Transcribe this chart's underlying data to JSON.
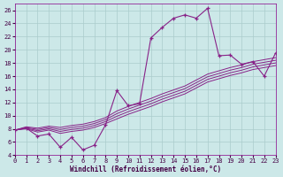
{
  "xlabel": "Windchill (Refroidissement éolien,°C)",
  "background_color": "#cce8e8",
  "grid_color": "#aacccc",
  "line_color": "#882288",
  "x_values": [
    0,
    1,
    2,
    3,
    4,
    5,
    6,
    7,
    8,
    9,
    10,
    11,
    12,
    13,
    14,
    15,
    16,
    17,
    18,
    19,
    20,
    21,
    22,
    23
  ],
  "y_data": [
    7.8,
    8.1,
    6.9,
    7.2,
    5.2,
    6.7,
    4.8,
    5.5,
    8.6,
    13.8,
    11.5,
    11.8,
    21.8,
    23.4,
    24.8,
    25.3,
    24.8,
    26.3,
    19.1,
    19.2,
    17.8,
    18.2,
    16.0,
    19.5
  ],
  "band_lines": [
    [
      7.8,
      8.0,
      7.5,
      7.8,
      7.3,
      7.6,
      7.8,
      8.2,
      8.8,
      9.5,
      10.2,
      10.8,
      11.4,
      12.1,
      12.7,
      13.3,
      14.2,
      15.1,
      15.6,
      16.1,
      16.5,
      17.0,
      17.3,
      17.6
    ],
    [
      7.8,
      8.1,
      7.7,
      8.0,
      7.6,
      7.9,
      8.1,
      8.5,
      9.1,
      9.9,
      10.6,
      11.2,
      11.8,
      12.5,
      13.1,
      13.7,
      14.6,
      15.5,
      16.0,
      16.5,
      16.9,
      17.4,
      17.7,
      18.0
    ],
    [
      7.8,
      8.2,
      7.9,
      8.2,
      7.9,
      8.2,
      8.4,
      8.8,
      9.4,
      10.3,
      11.0,
      11.6,
      12.2,
      12.9,
      13.5,
      14.1,
      15.0,
      15.9,
      16.4,
      16.9,
      17.3,
      17.8,
      18.1,
      18.4
    ],
    [
      7.8,
      8.3,
      8.1,
      8.4,
      8.2,
      8.5,
      8.7,
      9.1,
      9.7,
      10.7,
      11.4,
      12.0,
      12.6,
      13.3,
      13.9,
      14.5,
      15.4,
      16.3,
      16.8,
      17.3,
      17.7,
      18.2,
      18.5,
      18.8
    ]
  ],
  "ylim": [
    4,
    27
  ],
  "xlim": [
    0,
    23
  ],
  "yticks": [
    4,
    6,
    8,
    10,
    12,
    14,
    16,
    18,
    20,
    22,
    24,
    26
  ],
  "xticks": [
    0,
    1,
    2,
    3,
    4,
    5,
    6,
    7,
    8,
    9,
    10,
    11,
    12,
    13,
    14,
    15,
    16,
    17,
    18,
    19,
    20,
    21,
    22,
    23
  ]
}
